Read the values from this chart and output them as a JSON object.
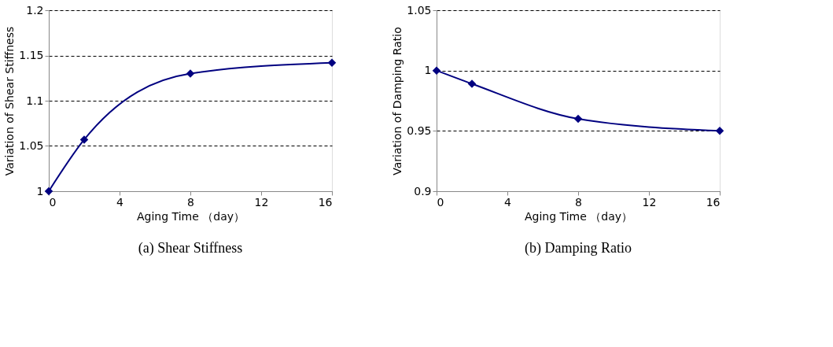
{
  "chart_data": [
    {
      "type": "line",
      "title": "(a) Shear Stiffness",
      "xlabel": "Aging Time （day）",
      "ylabel": "Variation of Shear Stiffness",
      "x": [
        0,
        2,
        8,
        16
      ],
      "series": [
        {
          "color": "#000080",
          "values": [
            1.0,
            1.057,
            1.13,
            1.142
          ]
        }
      ],
      "xlim": [
        0,
        16
      ],
      "xticks": [
        0,
        4,
        8,
        12,
        16
      ],
      "ylim": [
        1,
        1.2
      ],
      "yticks": [
        1,
        1.05,
        1.1,
        1.15,
        1.2
      ],
      "grid": "y",
      "marker": "diamond",
      "line_style": "solid"
    },
    {
      "type": "line",
      "title": "(b) Damping Ratio",
      "xlabel": "Aging Time （day）",
      "ylabel": "Variation of Damping Ratio",
      "x": [
        0,
        2,
        8,
        16
      ],
      "series": [
        {
          "color": "#000080",
          "values": [
            1.0,
            0.989,
            0.96,
            0.95
          ]
        }
      ],
      "xlim": [
        0,
        16
      ],
      "xticks": [
        0,
        4,
        8,
        12,
        16
      ],
      "ylim": [
        0.9,
        1.05
      ],
      "yticks": [
        0.9,
        0.95,
        1,
        1.05
      ],
      "grid": "y",
      "marker": "diamond",
      "line_style": "solid"
    }
  ]
}
